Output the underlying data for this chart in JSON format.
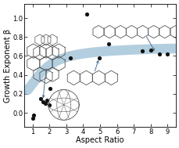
{
  "title": "",
  "xlabel": "Aspect Ratio",
  "ylabel": "Growth Exponent β",
  "xlim": [
    0.5,
    9.5
  ],
  "ylim": [
    -0.15,
    1.15
  ],
  "xticks": [
    1,
    2,
    3,
    4,
    5,
    6,
    7,
    8,
    9
  ],
  "yticks": [
    0.0,
    0.2,
    0.4,
    0.6,
    0.8,
    1.0
  ],
  "scatter_x": [
    1.0,
    1.05,
    1.5,
    1.6,
    1.75,
    1.85,
    2.0,
    2.05,
    3.25,
    4.2,
    4.95,
    5.5,
    7.5,
    8.0,
    8.5,
    9.0
  ],
  "scatter_y": [
    -0.06,
    -0.02,
    0.15,
    0.12,
    0.1,
    0.13,
    0.08,
    0.26,
    0.58,
    1.04,
    0.58,
    0.73,
    0.65,
    0.66,
    0.62,
    0.62
  ],
  "curve_color": "#8ab4ce",
  "curve_alpha": 0.65,
  "curve_linewidth": 9,
  "scatter_color": "#111111",
  "scatter_size": 14,
  "background_color": "#ffffff",
  "tick_fontsize": 6,
  "label_fontsize": 7,
  "arrow_color": "#4a7090",
  "mol_color": "#555555",
  "mol_lw": 0.6
}
